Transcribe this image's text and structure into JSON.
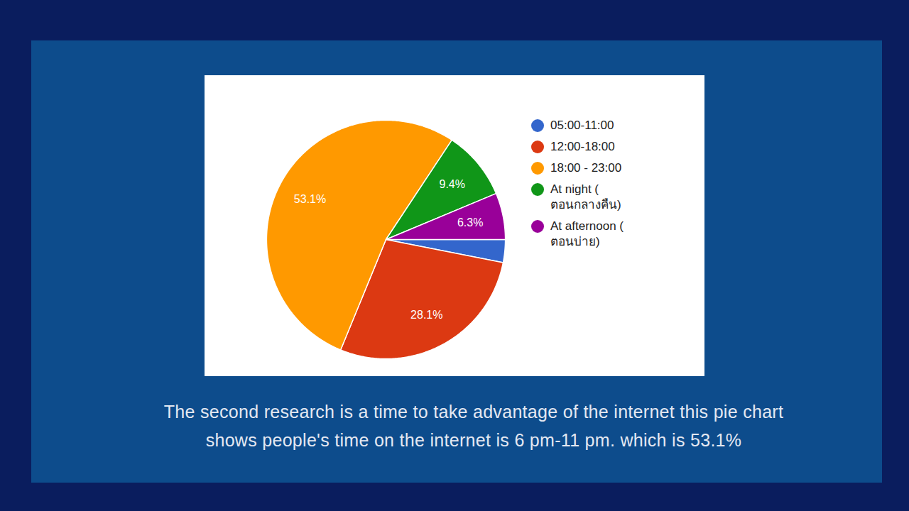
{
  "chart_data": {
    "type": "pie",
    "categories": [
      "05:00-11:00",
      "12:00-18:00",
      "18:00 - 23:00",
      "At night ( ตอนกลางคืน)",
      "At afternoon ( ตอนบ่าย)"
    ],
    "values": [
      3.1,
      28.1,
      53.1,
      9.4,
      6.3
    ],
    "value_labels": [
      null,
      "28.1%",
      "53.1%",
      "9.4%",
      "6.3%"
    ],
    "colors": [
      "#3366cc",
      "#dc3912",
      "#ff9900",
      "#109618",
      "#990099"
    ],
    "data_labels": true,
    "legend": "right",
    "caption": "The second research is a time to take advantage of the internet this pie chart shows people's time on the internet is 6 pm-11 pm. which is 53.1%"
  }
}
